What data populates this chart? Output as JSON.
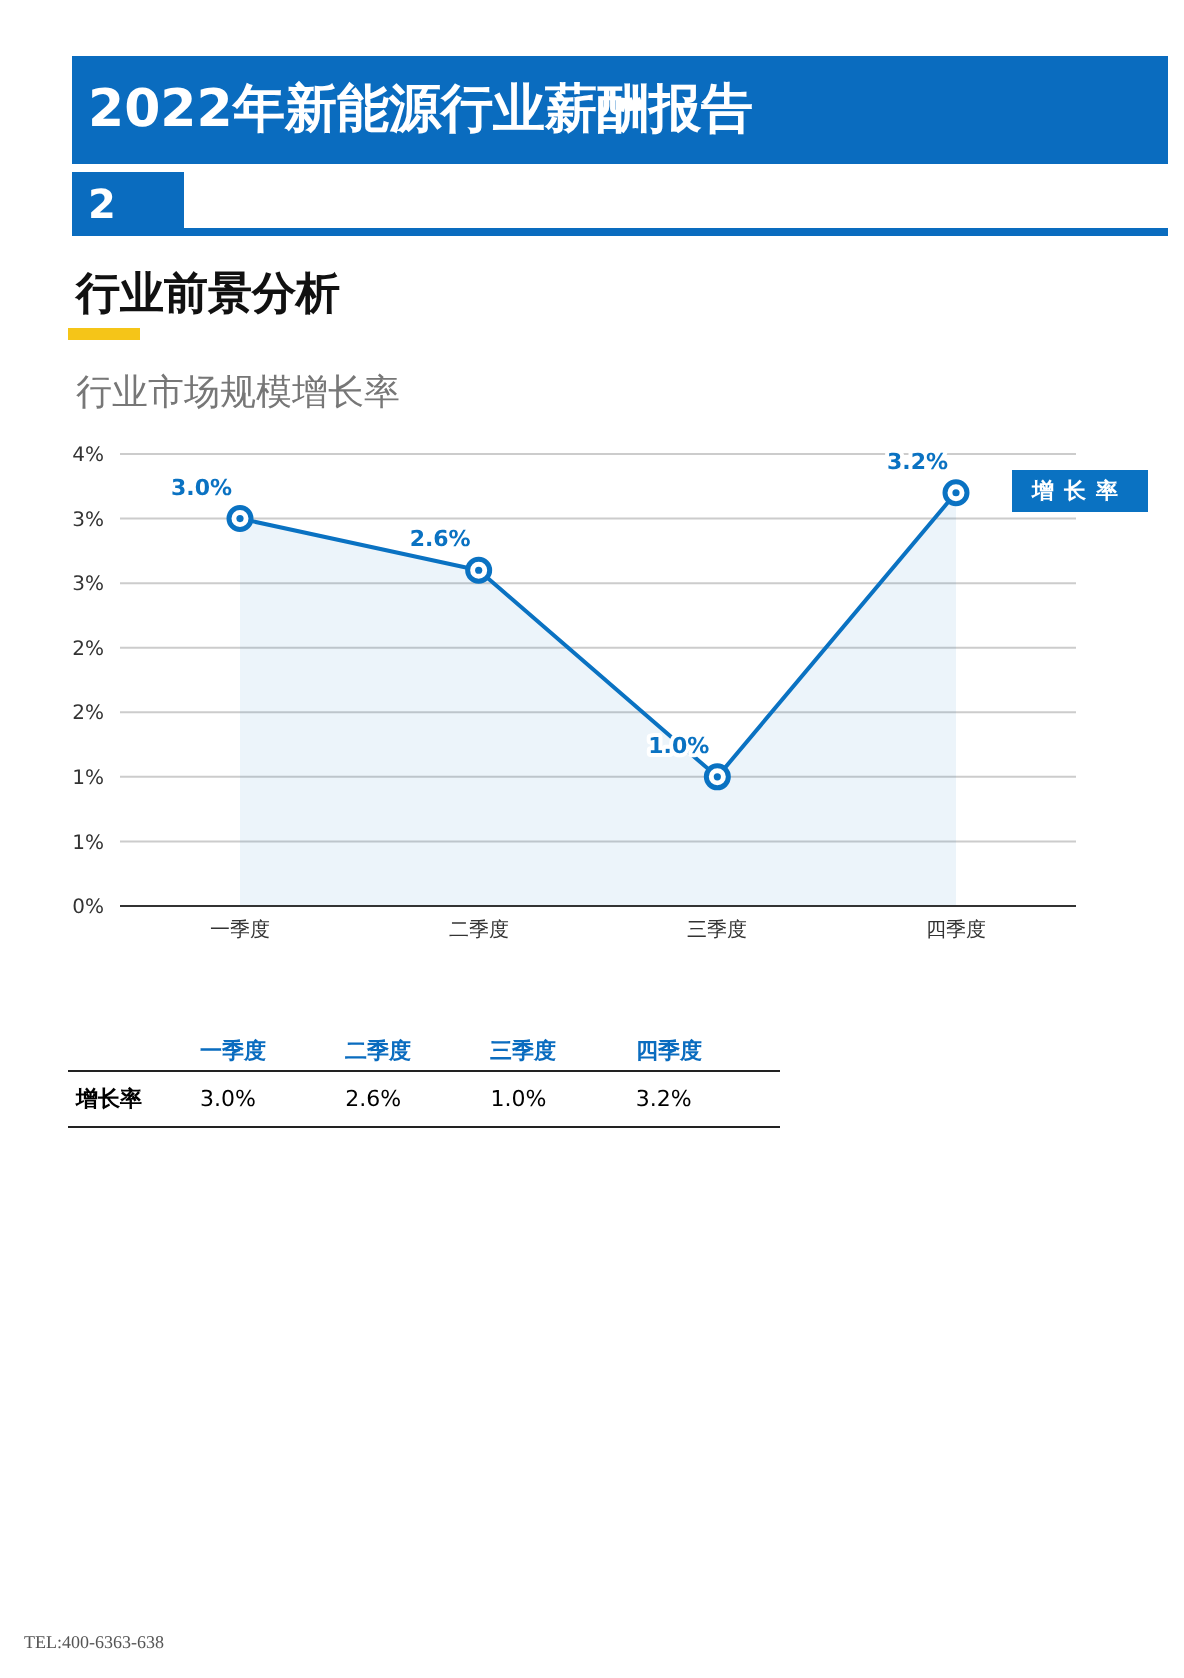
{
  "chart_data": {
    "type": "area",
    "title": "2022年新能源行业薪酬报告",
    "subtitle": "行业前景分析",
    "annotations": [
      "2",
      "行业市场规模增长率",
      "TEL:400-6363-638"
    ],
    "categories": [
      "一季度",
      "二季度",
      "三季度",
      "四季度"
    ],
    "series": [
      {
        "name": "增长率",
        "color": "#0a72c2",
        "values": [
          3.0,
          2.6,
          1.0,
          3.2
        ],
        "value_labels": [
          "3.0%",
          "2.6%",
          "1.0%",
          "3.2%"
        ]
      }
    ],
    "ylim": [
      0,
      3.5
    ],
    "yticks": [
      {
        "value": 0,
        "label": "0%"
      },
      {
        "value": 0.5,
        "label": "1%"
      },
      {
        "value": 1,
        "label": "1%"
      },
      {
        "value": 1.5,
        "label": "2%"
      },
      {
        "value": 2,
        "label": "2%"
      },
      {
        "value": 2.5,
        "label": "3%"
      },
      {
        "value": 3,
        "label": "3%"
      },
      {
        "value": 3.5,
        "label": "4%"
      }
    ],
    "grid": "y",
    "legend": "top right",
    "marker": "circle",
    "line_style": "solid",
    "data_labels": true
  }
}
